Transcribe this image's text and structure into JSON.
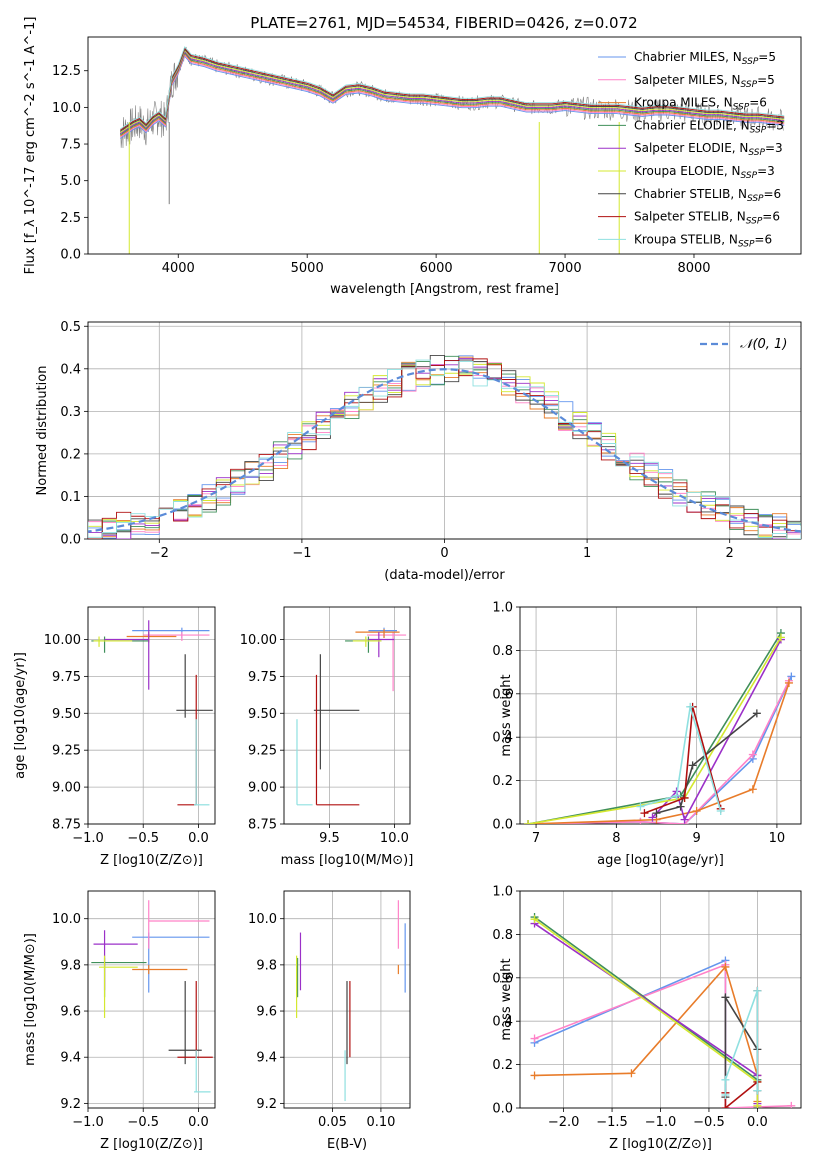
{
  "figure": {
    "title": "PLATE=2761, MJD=54534, FIBERID=0426, z=0.072"
  },
  "series_styles": [
    {
      "name": "Chabrier MILES",
      "nssp": "5",
      "color": "#6495ed"
    },
    {
      "name": "Salpeter MILES",
      "nssp": "5",
      "color": "#ff82c8"
    },
    {
      "name": "Kroupa MILES",
      "nssp": "6",
      "color": "#e87c2a"
    },
    {
      "name": "Chabrier ELODIE",
      "nssp": "3",
      "color": "#3f8f5a"
    },
    {
      "name": "Salpeter ELODIE",
      "nssp": "3",
      "color": "#9b30c8"
    },
    {
      "name": "Kroupa ELODIE",
      "nssp": "3",
      "color": "#d4e830"
    },
    {
      "name": "Chabrier STELIB",
      "nssp": "6",
      "color": "#444444"
    },
    {
      "name": "Salpeter STELIB",
      "nssp": "6",
      "color": "#b01010"
    },
    {
      "name": "Kroupa STELIB",
      "nssp": "6",
      "color": "#8fe0e0"
    }
  ],
  "chart_data": [
    {
      "id": "spectrum",
      "type": "line",
      "xlabel": "wavelength [Angstrom, rest frame]",
      "ylabel": "Flux [f_λ 10^-17 erg cm^-2 s^-1 A^-1]",
      "xlim": [
        3300,
        8830
      ],
      "ylim": [
        0,
        14.8
      ],
      "xticks": [
        4000,
        5000,
        6000,
        7000,
        8000
      ],
      "yticks": [
        "0.0",
        "2.5",
        "5.0",
        "7.5",
        "10.0",
        "12.5"
      ],
      "legend": "top-right",
      "grid": false,
      "data_color": "#808080",
      "data": {
        "x": [
          3550,
          3600,
          3650,
          3700,
          3750,
          3800,
          3850,
          3900,
          3950,
          4000,
          4050,
          4100,
          4200,
          4300,
          4400,
          4500,
          4600,
          4700,
          4800,
          4900,
          5000,
          5100,
          5200,
          5300,
          5400,
          5500,
          5600,
          5700,
          5800,
          5900,
          6000,
          6100,
          6200,
          6300,
          6400,
          6500,
          6600,
          6700,
          6800,
          6900,
          7000,
          7100,
          7200,
          7300,
          7400,
          7500,
          7600,
          7700,
          7800,
          7900,
          8000,
          8100,
          8200,
          8300,
          8400,
          8500,
          8600,
          8700
        ],
        "y": [
          8.2,
          8.5,
          8.8,
          9.0,
          8.6,
          9.1,
          9.4,
          9.0,
          11.8,
          12.6,
          13.8,
          13.3,
          13.1,
          12.8,
          12.6,
          12.4,
          12.2,
          12.0,
          11.8,
          11.6,
          11.4,
          11.1,
          10.6,
          11.2,
          11.3,
          11.1,
          10.8,
          10.7,
          10.6,
          10.6,
          10.5,
          10.4,
          10.3,
          10.3,
          10.4,
          10.4,
          10.2,
          10.0,
          10.0,
          10.0,
          10.1,
          10.0,
          9.9,
          9.9,
          9.9,
          9.8,
          9.7,
          9.8,
          9.8,
          9.7,
          9.6,
          9.5,
          9.5,
          9.4,
          9.3,
          9.3,
          9.2,
          9.1
        ]
      }
    },
    {
      "id": "residuals",
      "type": "line",
      "xlabel": "(data-model)/error",
      "ylabel": "Normed distribution",
      "xlim": [
        -2.5,
        2.5
      ],
      "ylim": [
        0,
        0.51
      ],
      "xticks": [
        "−2",
        "−1",
        "0",
        "1",
        "2"
      ],
      "yticks": [
        "0.0",
        "0.1",
        "0.2",
        "0.3",
        "0.4",
        "0.5"
      ],
      "grid": true,
      "legend": "top-right",
      "normal_label": "𝒩(0, 1)",
      "normal_color": "#5b8bd8"
    },
    {
      "id": "age-vs-z",
      "type": "scatter",
      "xlabel": "Z [log10(Z/Z⊙)]",
      "ylabel": "age  [log10(age/yr)]",
      "xlim": [
        -1.0,
        0.15
      ],
      "ylim": [
        8.75,
        10.22
      ],
      "xticks": [
        "−1.0",
        "−0.5",
        "0.0"
      ],
      "yticks": [
        "8.75",
        "9.00",
        "9.25",
        "9.50",
        "9.75",
        "10.00"
      ],
      "grid": true,
      "points": [
        {
          "s": 0,
          "x": -0.15,
          "y": 10.06,
          "xl": 0.45,
          "xh": 0.25,
          "yl": 0.05,
          "yh": 0.02
        },
        {
          "s": 1,
          "x": -0.15,
          "y": 10.03,
          "xl": 0.35,
          "xh": 0.25,
          "yl": 0.04,
          "yh": 0.02
        },
        {
          "s": 2,
          "x": -0.45,
          "y": 10.02,
          "xl": 0.2,
          "xh": 0.25,
          "yl": 0.04,
          "yh": 0.03
        },
        {
          "s": 3,
          "x": -0.85,
          "y": 9.99,
          "xl": 0.12,
          "xh": 0.4,
          "yl": 0.08,
          "yh": 0.03
        },
        {
          "s": 4,
          "x": -0.45,
          "y": 10.0,
          "xl": 0.4,
          "xh": 0.0,
          "yl": 0.34,
          "yh": 0.13
        },
        {
          "s": 5,
          "x": -0.9,
          "y": 9.99,
          "xl": 0.05,
          "xh": 0.3,
          "yl": 0.04,
          "yh": 0.03
        },
        {
          "s": 6,
          "x": -0.12,
          "y": 9.52,
          "xl": 0.08,
          "xh": 0.25,
          "yl": 0.05,
          "yh": 0.38
        },
        {
          "s": 7,
          "x": -0.02,
          "y": 8.88,
          "xl": 0.17,
          "xh": 0.0,
          "yl": 0.0,
          "yh": 0.88
        },
        {
          "s": 8,
          "x": -0.02,
          "y": 8.88,
          "xl": 0.02,
          "xh": 0.12,
          "yl": 0.0,
          "yh": 0.58
        }
      ]
    },
    {
      "id": "age-vs-mass",
      "type": "scatter",
      "xlabel": "mass [log10(M/M⊙)]",
      "ylabel": "",
      "xlim": [
        9.15,
        10.12
      ],
      "ylim": [
        8.75,
        10.22
      ],
      "xticks": [
        "9.5",
        "10.0"
      ],
      "yticks": [
        "8.75",
        "9.00",
        "9.25",
        "9.50",
        "9.75",
        "10.00"
      ],
      "grid": true,
      "points": [
        {
          "s": 0,
          "x": 9.92,
          "y": 10.06,
          "xl": 0.12,
          "xh": 0.1,
          "yl": 0.05,
          "yh": 0.02
        },
        {
          "s": 1,
          "x": 9.99,
          "y": 10.03,
          "xl": 0.2,
          "xh": 0.1,
          "yl": 0.38,
          "yh": 0.02
        },
        {
          "s": 2,
          "x": 9.92,
          "y": 10.05,
          "xl": 0.22,
          "xh": 0.12,
          "yl": 0.04,
          "yh": 0.02
        },
        {
          "s": 3,
          "x": 9.8,
          "y": 9.99,
          "xl": 0.18,
          "xh": 0.1,
          "yl": 0.08,
          "yh": 0.03
        },
        {
          "s": 4,
          "x": 9.88,
          "y": 10.0,
          "xl": 0.08,
          "xh": 0.12,
          "yl": 0.12,
          "yh": 0.05
        },
        {
          "s": 5,
          "x": 9.78,
          "y": 9.99,
          "xl": 0.1,
          "xh": 0.12,
          "yl": 0.04,
          "yh": 0.03
        },
        {
          "s": 6,
          "x": 9.43,
          "y": 9.52,
          "xl": 0.05,
          "xh": 0.3,
          "yl": 0.4,
          "yh": 0.38
        },
        {
          "s": 7,
          "x": 9.4,
          "y": 8.88,
          "xl": 0.0,
          "xh": 0.33,
          "yl": 0.0,
          "yh": 0.88
        },
        {
          "s": 8,
          "x": 9.25,
          "y": 8.88,
          "xl": 0.0,
          "xh": 0.12,
          "yl": 0.0,
          "yh": 0.58
        }
      ]
    },
    {
      "id": "weight-vs-age",
      "type": "line",
      "xlabel": "age  [log10(age/yr)]",
      "ylabel": "mass weight",
      "xlim": [
        6.8,
        10.3
      ],
      "ylim": [
        0,
        1.0
      ],
      "xticks": [
        "7",
        "8",
        "9",
        "10"
      ],
      "yticks": [
        "0.0",
        "0.2",
        "0.4",
        "0.6",
        "0.8",
        "1.0"
      ],
      "grid": true,
      "series": [
        {
          "s": 0,
          "x": [
            6.9,
            8.3,
            8.85,
            9.7,
            10.18
          ],
          "y": [
            0.0,
            0.01,
            0.0,
            0.3,
            0.68
          ]
        },
        {
          "s": 1,
          "x": [
            6.9,
            8.3,
            8.85,
            9.7,
            10.15
          ],
          "y": [
            0.0,
            0.01,
            0.0,
            0.32,
            0.66
          ]
        },
        {
          "s": 2,
          "x": [
            6.9,
            8.5,
            9.0,
            9.7,
            10.15
          ],
          "y": [
            0.0,
            0.02,
            0.06,
            0.16,
            0.65
          ]
        },
        {
          "s": 3,
          "x": [
            6.9,
            8.8,
            10.05
          ],
          "y": [
            0.0,
            0.13,
            0.88
          ]
        },
        {
          "s": 4,
          "x": [
            8.45,
            8.75,
            8.85,
            10.05
          ],
          "y": [
            0.03,
            0.15,
            0.02,
            0.85
          ]
        },
        {
          "s": 5,
          "x": [
            6.9,
            8.85,
            10.05
          ],
          "y": [
            0.0,
            0.12,
            0.86
          ]
        },
        {
          "s": 6,
          "x": [
            8.5,
            8.8,
            8.95,
            9.75
          ],
          "y": [
            0.05,
            0.08,
            0.27,
            0.51
          ]
        },
        {
          "s": 7,
          "x": [
            8.35,
            8.85,
            8.95,
            9.3
          ],
          "y": [
            0.05,
            0.12,
            0.54,
            0.07
          ]
        },
        {
          "s": 8,
          "x": [
            8.3,
            8.75,
            8.92,
            9.3
          ],
          "y": [
            0.08,
            0.13,
            0.54,
            0.06
          ]
        }
      ]
    },
    {
      "id": "mass-vs-z",
      "type": "scatter",
      "xlabel": "Z [log10(Z/Z⊙)]",
      "ylabel": "mass [log10(M/M⊙)]",
      "xlim": [
        -1.0,
        0.15
      ],
      "ylim": [
        9.18,
        10.12
      ],
      "xticks": [
        "−1.0",
        "−0.5",
        "0.0"
      ],
      "yticks": [
        "9.2",
        "9.4",
        "9.6",
        "9.8",
        "10.0"
      ],
      "grid": true,
      "points": [
        {
          "s": 0,
          "x": -0.45,
          "y": 9.92,
          "xl": 0.15,
          "xh": 0.55,
          "yl": 0.24,
          "yh": 0.02
        },
        {
          "s": 1,
          "x": -0.45,
          "y": 9.99,
          "xl": 0.0,
          "xh": 0.55,
          "yl": 0.12,
          "yh": 0.09
        },
        {
          "s": 2,
          "x": -0.45,
          "y": 9.78,
          "xl": 0.15,
          "xh": 0.35,
          "yl": 0.02,
          "yh": 0.02
        },
        {
          "s": 3,
          "x": -0.85,
          "y": 9.81,
          "xl": 0.12,
          "xh": 0.38,
          "yl": 0.15,
          "yh": 0.02
        },
        {
          "s": 4,
          "x": -0.85,
          "y": 9.89,
          "xl": 0.1,
          "xh": 0.3,
          "yl": 0.2,
          "yh": 0.06
        },
        {
          "s": 5,
          "x": -0.85,
          "y": 9.79,
          "xl": 0.05,
          "xh": 0.3,
          "yl": 0.22,
          "yh": 0.05
        },
        {
          "s": 6,
          "x": -0.12,
          "y": 9.43,
          "xl": 0.15,
          "xh": 0.15,
          "yl": 0.06,
          "yh": 0.3
        },
        {
          "s": 7,
          "x": -0.02,
          "y": 9.4,
          "xl": 0.17,
          "xh": 0.15,
          "yl": 0.0,
          "yh": 0.33
        },
        {
          "s": 8,
          "x": -0.02,
          "y": 9.25,
          "xl": 0.02,
          "xh": 0.13,
          "yl": 0.0,
          "yh": 0.18
        }
      ]
    },
    {
      "id": "mass-vs-ebv",
      "type": "scatter",
      "xlabel": "E(B-V)",
      "ylabel": "",
      "xlim": [
        0.0,
        0.13
      ],
      "ylim": [
        9.18,
        10.12
      ],
      "xticks": [
        "0.05",
        "0.10"
      ],
      "yticks": [
        "9.2",
        "9.4",
        "9.6",
        "9.8",
        "10.0"
      ],
      "grid": true,
      "points": [
        {
          "s": 0,
          "x": 0.125,
          "y": 9.92,
          "yl": 0.24,
          "yh": 0.06
        },
        {
          "s": 1,
          "x": 0.118,
          "y": 9.99,
          "yl": 0.12,
          "yh": 0.09
        },
        {
          "s": 2,
          "x": 0.118,
          "y": 9.78,
          "yl": 0.02,
          "yh": 0.02
        },
        {
          "s": 3,
          "x": 0.014,
          "y": 9.81,
          "yl": 0.15,
          "yh": 0.02
        },
        {
          "s": 4,
          "x": 0.017,
          "y": 9.89,
          "yl": 0.2,
          "yh": 0.05
        },
        {
          "s": 5,
          "x": 0.013,
          "y": 9.79,
          "yl": 0.22,
          "yh": 0.05
        },
        {
          "s": 6,
          "x": 0.065,
          "y": 9.43,
          "yl": 0.06,
          "yh": 0.3
        },
        {
          "s": 7,
          "x": 0.068,
          "y": 9.4,
          "yl": 0.0,
          "yh": 0.33
        },
        {
          "s": 8,
          "x": 0.063,
          "y": 9.25,
          "yl": 0.04,
          "yh": 0.18
        }
      ]
    },
    {
      "id": "weight-vs-z",
      "type": "line",
      "xlabel": "Z [log10(Z/Z⊙)]",
      "ylabel": "mass weight",
      "xlim": [
        -2.45,
        0.45
      ],
      "ylim": [
        0,
        1.0
      ],
      "xticks": [
        "−2.0",
        "−1.5",
        "−1.0",
        "−0.5",
        "0.0"
      ],
      "yticks": [
        "0.0",
        "0.2",
        "0.4",
        "0.6",
        "0.8",
        "1.0"
      ],
      "grid": true,
      "series": [
        {
          "s": 0,
          "x": [
            -2.3,
            -0.33,
            -0.33,
            0.0
          ],
          "y": [
            0.3,
            0.68,
            0.0,
            0.0
          ]
        },
        {
          "s": 1,
          "x": [
            -2.3,
            -0.33,
            -0.33,
            0.35
          ],
          "y": [
            0.32,
            0.66,
            0.0,
            0.01
          ]
        },
        {
          "s": 2,
          "x": [
            -2.3,
            -1.3,
            -0.33,
            0.0,
            0.0
          ],
          "y": [
            0.15,
            0.16,
            0.65,
            0.15,
            0.03
          ]
        },
        {
          "s": 3,
          "x": [
            -2.3,
            0.0,
            0.0
          ],
          "y": [
            0.88,
            0.13,
            0.0
          ]
        },
        {
          "s": 4,
          "x": [
            -2.3,
            0.0,
            0.0
          ],
          "y": [
            0.85,
            0.15,
            0.02
          ]
        },
        {
          "s": 5,
          "x": [
            -2.3,
            0.0,
            0.0
          ],
          "y": [
            0.87,
            0.12,
            0.01
          ]
        },
        {
          "s": 6,
          "x": [
            -0.33,
            -0.33,
            0.0,
            0.0
          ],
          "y": [
            0.05,
            0.51,
            0.27,
            0.08
          ]
        },
        {
          "s": 7,
          "x": [
            -0.33,
            -0.33,
            0.0,
            0.0
          ],
          "y": [
            0.07,
            0.0,
            0.12,
            0.54
          ]
        },
        {
          "s": 8,
          "x": [
            -0.33,
            -0.33,
            0.0,
            0.0
          ],
          "y": [
            0.06,
            0.13,
            0.54,
            0.08
          ]
        }
      ]
    }
  ]
}
